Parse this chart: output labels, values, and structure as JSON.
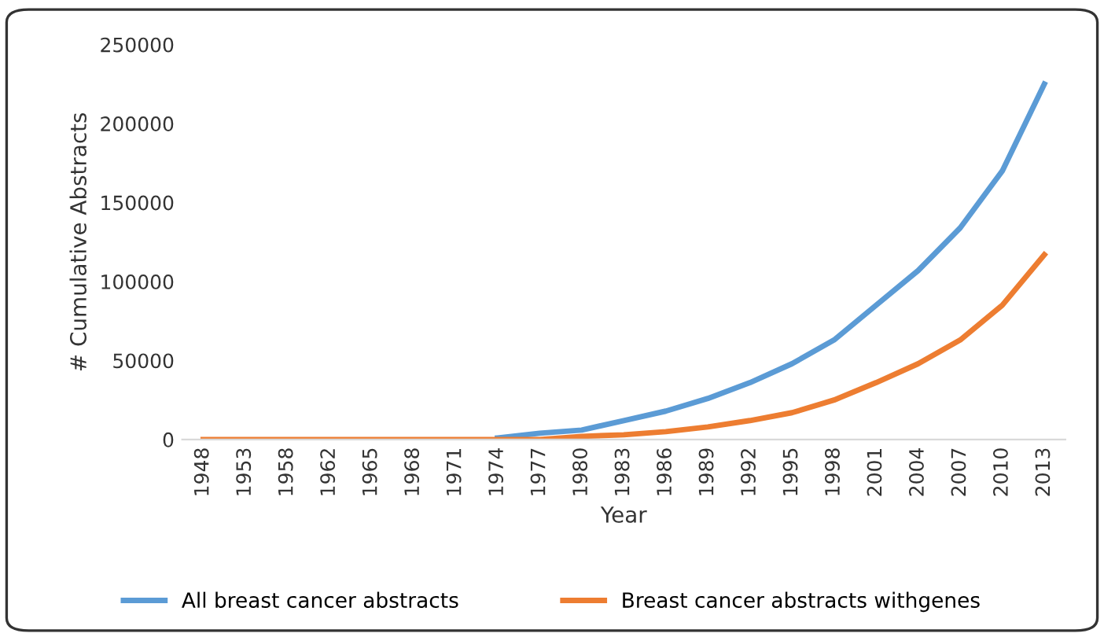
{
  "chart_data": {
    "type": "line",
    "xlabel": "Year",
    "ylabel": "# Cumulative Abstracts",
    "categories": [
      "1948",
      "1953",
      "1958",
      "1962",
      "1965",
      "1968",
      "1971",
      "1974",
      "1977",
      "1980",
      "1983",
      "1986",
      "1989",
      "1992",
      "1995",
      "1998",
      "2001",
      "2004",
      "2007",
      "2010",
      "2013"
    ],
    "series": [
      {
        "name": "All breast cancer abstracts",
        "color": "#5b9bd5",
        "values": [
          null,
          null,
          null,
          null,
          null,
          null,
          null,
          1000,
          4000,
          6000,
          12000,
          18000,
          26000,
          36000,
          48000,
          63000,
          85000,
          107000,
          134000,
          170000,
          225000
        ]
      },
      {
        "name": "Breast cancer abstracts withgenes",
        "color": "#ed7d31",
        "values": [
          0,
          0,
          0,
          0,
          0,
          0,
          0,
          0,
          0,
          2000,
          3000,
          5000,
          8000,
          12000,
          17000,
          25000,
          36000,
          48000,
          63000,
          85000,
          117000
        ]
      }
    ],
    "ylim": [
      0,
      250000
    ],
    "yticks": [
      0,
      50000,
      100000,
      150000,
      200000,
      250000
    ],
    "grid": false,
    "legend": "bottom",
    "marker": "none",
    "line_style": "solid"
  }
}
